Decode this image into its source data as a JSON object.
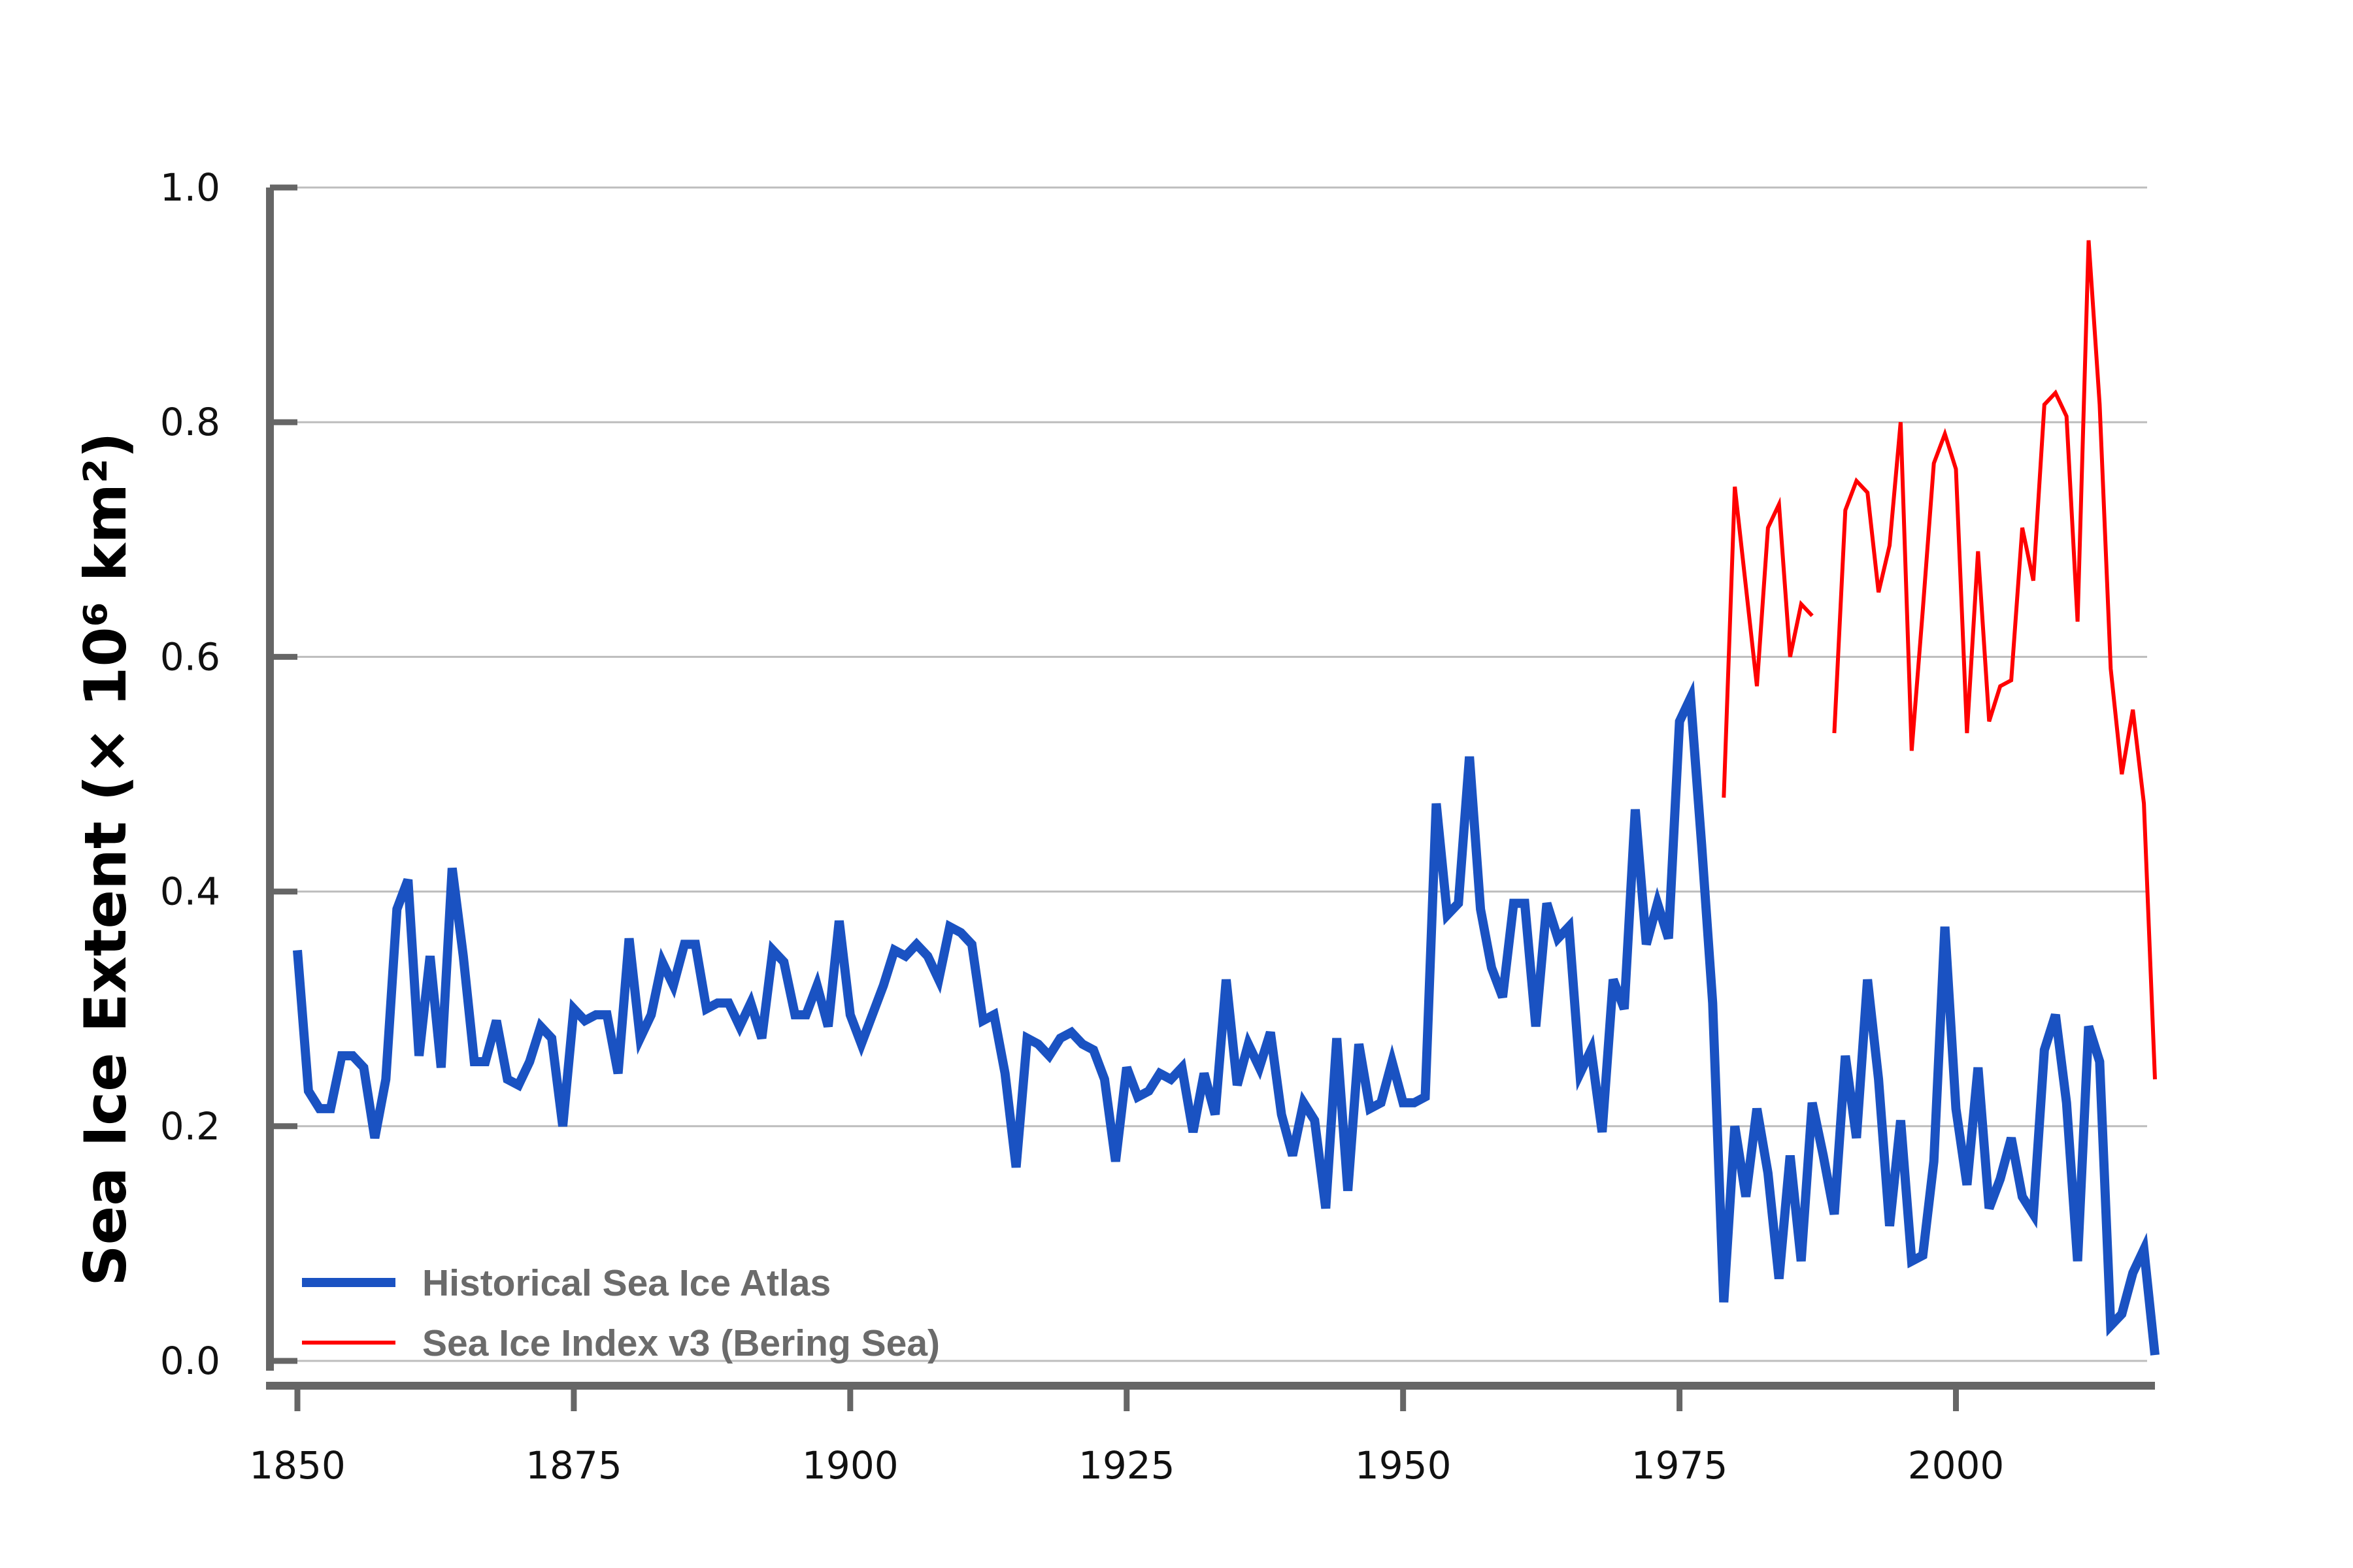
{
  "chart_data": {
    "type": "line",
    "title": "",
    "xlabel": "",
    "ylabel": "Sea Ice Extent (× 10⁶ km²)",
    "xlim": [
      1850,
      2018
    ],
    "ylim": [
      0,
      1.0
    ],
    "x_ticks": [
      "1850",
      "1875",
      "1900",
      "1925",
      "1950",
      "1975",
      "2000"
    ],
    "y_ticks": [
      "0.0",
      "0.2",
      "0.4",
      "0.6",
      "0.8",
      "1.0"
    ],
    "grid": "horizontal",
    "legend_position": "bottom-left",
    "series": [
      {
        "name": "Historical Sea Ice Atlas",
        "color": "#1a52c2",
        "x": [
          1850,
          1851,
          1852,
          1853,
          1854,
          1855,
          1856,
          1857,
          1858,
          1859,
          1860,
          1861,
          1862,
          1863,
          1864,
          1865,
          1866,
          1867,
          1868,
          1869,
          1870,
          1871,
          1872,
          1873,
          1874,
          1875,
          1876,
          1877,
          1878,
          1879,
          1880,
          1881,
          1882,
          1883,
          1884,
          1885,
          1886,
          1887,
          1888,
          1889,
          1890,
          1891,
          1892,
          1893,
          1894,
          1895,
          1896,
          1897,
          1898,
          1899,
          1900,
          1901,
          1902,
          1903,
          1904,
          1905,
          1906,
          1907,
          1908,
          1909,
          1910,
          1911,
          1912,
          1913,
          1914,
          1915,
          1916,
          1917,
          1918,
          1919,
          1920,
          1921,
          1922,
          1923,
          1924,
          1925,
          1926,
          1927,
          1928,
          1929,
          1930,
          1931,
          1932,
          1933,
          1934,
          1935,
          1936,
          1937,
          1938,
          1939,
          1940,
          1941,
          1942,
          1943,
          1944,
          1945,
          1946,
          1947,
          1948,
          1949,
          1950,
          1951,
          1952,
          1953,
          1954,
          1955,
          1956,
          1957,
          1958,
          1959,
          1960,
          1961,
          1962,
          1963,
          1964,
          1965,
          1966,
          1967,
          1968,
          1969,
          1970,
          1971,
          1972,
          1973,
          1974,
          1975,
          1976,
          1977,
          1978,
          1979,
          1980,
          1981,
          1982,
          1983,
          1984,
          1985,
          1986,
          1987,
          1988,
          1989,
          1990,
          1991,
          1992,
          1993,
          1994,
          1995,
          1996,
          1997,
          1998,
          1999,
          2000,
          2001,
          2002,
          2003,
          2004,
          2005,
          2006,
          2007,
          2008,
          2009,
          2010,
          2011,
          2012,
          2013,
          2014,
          2015,
          2016,
          2017,
          2018
        ],
        "values": [
          0.35,
          0.23,
          0.215,
          0.215,
          0.26,
          0.26,
          0.25,
          0.19,
          0.24,
          0.385,
          0.41,
          0.26,
          0.345,
          0.25,
          0.42,
          0.345,
          0.255,
          0.255,
          0.29,
          0.24,
          0.235,
          0.255,
          0.285,
          0.275,
          0.2,
          0.3,
          0.29,
          0.295,
          0.295,
          0.245,
          0.36,
          0.275,
          0.295,
          0.34,
          0.32,
          0.355,
          0.355,
          0.3,
          0.305,
          0.305,
          0.285,
          0.305,
          0.275,
          0.35,
          0.34,
          0.295,
          0.295,
          0.32,
          0.285,
          0.375,
          0.295,
          0.27,
          0.295,
          0.32,
          0.35,
          0.345,
          0.355,
          0.345,
          0.325,
          0.37,
          0.365,
          0.355,
          0.29,
          0.295,
          0.245,
          0.165,
          0.275,
          0.27,
          0.26,
          0.275,
          0.28,
          0.27,
          0.265,
          0.24,
          0.17,
          0.25,
          0.225,
          0.23,
          0.245,
          0.24,
          0.25,
          0.195,
          0.245,
          0.21,
          0.325,
          0.235,
          0.27,
          0.25,
          0.28,
          0.21,
          0.175,
          0.22,
          0.205,
          0.13,
          0.275,
          0.145,
          0.27,
          0.215,
          0.22,
          0.255,
          0.22,
          0.22,
          0.225,
          0.475,
          0.38,
          0.39,
          0.515,
          0.385,
          0.335,
          0.31,
          0.39,
          0.39,
          0.285,
          0.39,
          0.36,
          0.37,
          0.245,
          0.265,
          0.195,
          0.325,
          0.3,
          0.47,
          0.355,
          0.39,
          0.36,
          0.545,
          0.565,
          0.44,
          0.305,
          0.05,
          0.2,
          0.14,
          0.215,
          0.16,
          0.07,
          0.175,
          0.085,
          0.22,
          0.175,
          0.125,
          0.26,
          0.19,
          0.325,
          0.24,
          0.115,
          0.205,
          0.085,
          0.09,
          0.17,
          0.37,
          0.215,
          0.15,
          0.25,
          0.13,
          0.155,
          0.19,
          0.14,
          0.125,
          0.265,
          0.295,
          0.22,
          0.085,
          0.285,
          0.255,
          0.03,
          0.04,
          0.075,
          0.095,
          0.005
        ]
      },
      {
        "name": "Sea Ice Index v3 (Bering Sea)",
        "color": "#ff0000",
        "x": [
          1979,
          1980,
          1981,
          1982,
          1983,
          1984,
          1985,
          1986,
          1987,
          null,
          1989,
          1990,
          1991,
          1992,
          1993,
          1994,
          1995,
          1996,
          1997,
          1998,
          1999,
          2000,
          2001,
          2002,
          2003,
          2004,
          2005,
          2006,
          2007,
          2008,
          2009,
          2010,
          2011,
          2012,
          2013,
          2014,
          2015,
          2016,
          2017,
          2018
        ],
        "values": [
          0.48,
          0.745,
          0.66,
          0.575,
          0.71,
          0.73,
          0.6,
          0.645,
          0.635,
          null,
          0.535,
          0.725,
          0.75,
          0.74,
          0.655,
          0.695,
          0.8,
          0.52,
          0.64,
          0.765,
          0.79,
          0.76,
          0.535,
          0.69,
          0.545,
          0.575,
          0.58,
          0.71,
          0.665,
          0.815,
          0.825,
          0.805,
          0.63,
          0.955,
          0.815,
          0.59,
          0.5,
          0.555,
          0.475,
          0.24
        ]
      }
    ]
  }
}
